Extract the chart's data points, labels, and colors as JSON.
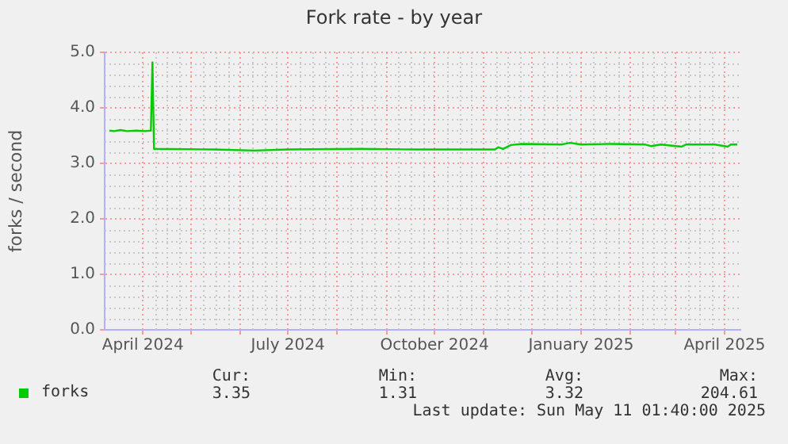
{
  "chart_data": {
    "type": "line",
    "title": "Fork rate - by year",
    "ylabel": "forks / second",
    "x": [
      "2024-03-11",
      "2024-03-14",
      "2024-03-18",
      "2024-03-22",
      "2024-03-28",
      "2024-04-02",
      "2024-04-06",
      "2024-04-07",
      "2024-04-08",
      "2024-05-15",
      "2024-06-10",
      "2024-07-01",
      "2024-08-15",
      "2024-09-20",
      "2024-10-20",
      "2024-11-08",
      "2024-11-10",
      "2024-11-13",
      "2024-11-18",
      "2024-11-25",
      "2024-12-20",
      "2024-12-25",
      "2025-01-01",
      "2025-01-20",
      "2025-02-10",
      "2025-02-14",
      "2025-02-20",
      "2025-03-05",
      "2025-03-08",
      "2025-03-26",
      "2025-04-03",
      "2025-04-05",
      "2025-04-09"
    ],
    "series": [
      {
        "name": "forks",
        "color": "#00cc00",
        "values": [
          3.59,
          3.58,
          3.6,
          3.58,
          3.59,
          3.58,
          3.59,
          4.82,
          3.26,
          3.25,
          3.23,
          3.25,
          3.26,
          3.25,
          3.25,
          3.25,
          3.29,
          3.26,
          3.33,
          3.35,
          3.34,
          3.37,
          3.34,
          3.35,
          3.34,
          3.31,
          3.34,
          3.3,
          3.34,
          3.34,
          3.3,
          3.34,
          3.34
        ]
      }
    ],
    "xlim": [
      "2024-03-08",
      "2025-04-11"
    ],
    "xticks": [
      {
        "value": "2024-04-01",
        "label": "April 2024"
      },
      {
        "value": "2024-05-01",
        "label": null
      },
      {
        "value": "2024-06-01",
        "label": null
      },
      {
        "value": "2024-07-01",
        "label": "July 2024"
      },
      {
        "value": "2024-08-01",
        "label": null
      },
      {
        "value": "2024-09-01",
        "label": null
      },
      {
        "value": "2024-10-01",
        "label": "October 2024"
      },
      {
        "value": "2024-11-01",
        "label": null
      },
      {
        "value": "2024-12-01",
        "label": null
      },
      {
        "value": "2025-01-01",
        "label": "January 2025"
      },
      {
        "value": "2025-02-01",
        "label": null
      },
      {
        "value": "2025-03-01",
        "label": null
      },
      {
        "value": "2025-04-01",
        "label": "April 2025"
      }
    ],
    "ylim": [
      0,
      5
    ],
    "yticks": [
      {
        "value": 0,
        "label": "0.0"
      },
      {
        "value": 1,
        "label": "1.0"
      },
      {
        "value": 2,
        "label": "2.0"
      },
      {
        "value": 3,
        "label": "3.0"
      },
      {
        "value": 4,
        "label": "4.0"
      },
      {
        "value": 5,
        "label": "5.0"
      }
    ],
    "grid": true,
    "legend": "bottom left",
    "marker": "none",
    "line_style": "solid",
    "annotations": [
      "Cur:",
      "Min:",
      "Avg:",
      "Max:",
      "3.35",
      "1.31",
      "3.32",
      "204.61",
      "Last update: Sun May 11 01:40:00 2025"
    ]
  }
}
